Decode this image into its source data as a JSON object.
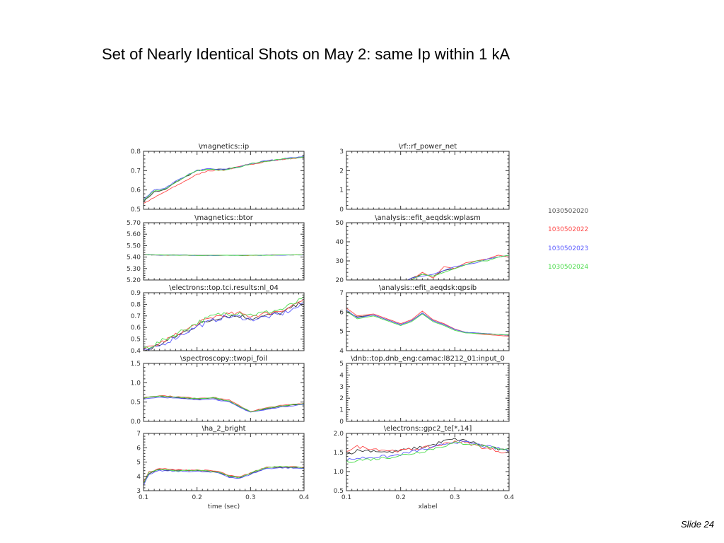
{
  "slide": {
    "title": "Set of Nearly Identical Shots on May 2:  same Ip within 1 kA",
    "slide_number": "Slide 24"
  },
  "legend": [
    {
      "label": "1030502020",
      "color": "#555555"
    },
    {
      "label": "1030502022",
      "color": "#ff4a4a"
    },
    {
      "label": "1030502023",
      "color": "#5a5aff"
    },
    {
      "label": "1030502024",
      "color": "#4ddc4d"
    }
  ],
  "series_colors": [
    "#333333",
    "#ff4a4a",
    "#5a5aff",
    "#4ddc4d"
  ],
  "chart_data": [
    {
      "type": "line",
      "title": "\\magnetics::ip",
      "xlim": [
        0.1,
        0.4
      ],
      "ylim": [
        0.5,
        0.8
      ],
      "yticks": [
        0.5,
        0.6,
        0.7,
        0.8
      ],
      "ytick_labels": [
        "0.5",
        "0.6",
        "0.7",
        "0.8"
      ],
      "x": [
        0.1,
        0.12,
        0.14,
        0.16,
        0.18,
        0.2,
        0.22,
        0.25,
        0.28,
        0.3,
        0.33,
        0.36,
        0.4
      ],
      "series": [
        {
          "values": [
            0.54,
            0.59,
            0.6,
            0.64,
            0.67,
            0.7,
            0.705,
            0.706,
            0.72,
            0.735,
            0.75,
            0.76,
            0.77
          ],
          "noise": 0.003
        },
        {
          "values": [
            0.53,
            0.56,
            0.59,
            0.62,
            0.65,
            0.68,
            0.7,
            0.703,
            0.72,
            0.733,
            0.748,
            0.758,
            0.77
          ],
          "noise": 0.003
        },
        {
          "values": [
            0.55,
            0.6,
            0.61,
            0.645,
            0.675,
            0.7,
            0.708,
            0.706,
            0.72,
            0.735,
            0.75,
            0.76,
            0.775
          ],
          "noise": 0.003
        },
        {
          "values": [
            0.545,
            0.595,
            0.605,
            0.64,
            0.672,
            0.698,
            0.706,
            0.705,
            0.72,
            0.734,
            0.749,
            0.759,
            0.772
          ],
          "noise": 0.003
        }
      ]
    },
    {
      "type": "line",
      "title": "\\rf::rf_power_net",
      "xlim": [
        0.1,
        0.4
      ],
      "ylim": [
        0,
        3
      ],
      "yticks": [
        0,
        1,
        2,
        3
      ],
      "ytick_labels": [
        "0",
        "1",
        "2",
        "3"
      ],
      "x": [
        0.1,
        0.4
      ],
      "series": [
        {
          "values": [
            0,
            0
          ],
          "noise": 0
        },
        {
          "values": [
            0,
            0
          ],
          "noise": 0
        },
        {
          "values": [
            0,
            0
          ],
          "noise": 0
        },
        {
          "values": [
            0,
            0
          ],
          "noise": 0
        }
      ]
    },
    {
      "type": "line",
      "title": "\\magnetics::btor",
      "xlim": [
        0.1,
        0.4
      ],
      "ylim": [
        5.2,
        5.7
      ],
      "yticks": [
        5.2,
        5.3,
        5.4,
        5.5,
        5.6,
        5.7
      ],
      "ytick_labels": [
        "5.20",
        "5.30",
        "5.40",
        "5.50",
        "5.60",
        "5.70"
      ],
      "x": [
        0.1,
        0.2,
        0.3,
        0.4
      ],
      "series": [
        {
          "values": [
            5.42,
            5.415,
            5.415,
            5.42
          ],
          "noise": 0.002
        },
        {
          "values": [
            5.42,
            5.415,
            5.415,
            5.42
          ],
          "noise": 0.002
        },
        {
          "values": [
            5.42,
            5.415,
            5.415,
            5.42
          ],
          "noise": 0.002
        },
        {
          "values": [
            5.42,
            5.415,
            5.415,
            5.42
          ],
          "noise": 0.002
        }
      ]
    },
    {
      "type": "line",
      "title": "\\analysis::efit_aeqdsk:wplasm",
      "xlim": [
        0.1,
        0.4
      ],
      "ylim": [
        20,
        50
      ],
      "yticks": [
        20,
        30,
        40,
        50
      ],
      "ytick_labels": [
        "20",
        "30",
        "40",
        "50"
      ],
      "x": [
        0.1,
        0.2,
        0.22,
        0.24,
        0.26,
        0.28,
        0.3,
        0.32,
        0.34,
        0.36,
        0.38,
        0.4
      ],
      "series": [
        {
          "values": [
            18,
            18,
            21,
            23,
            22,
            25,
            26,
            28,
            30,
            31,
            32,
            33
          ],
          "noise": 0
        },
        {
          "values": [
            18,
            18,
            20,
            24,
            21,
            27,
            26,
            29,
            30,
            31,
            33,
            32
          ],
          "noise": 0
        },
        {
          "values": [
            18,
            18,
            21,
            22,
            23,
            25,
            27,
            28,
            29,
            31,
            32,
            33
          ],
          "noise": 0
        },
        {
          "values": [
            18,
            18,
            20,
            23,
            22,
            24,
            26,
            28,
            30,
            30,
            32,
            33
          ],
          "noise": 0
        }
      ]
    },
    {
      "type": "line",
      "title": "\\electrons::top.tci.results:nl_04",
      "xlim": [
        0.1,
        0.4
      ],
      "ylim": [
        0.4,
        0.9
      ],
      "yticks": [
        0.4,
        0.5,
        0.6,
        0.7,
        0.8,
        0.9
      ],
      "ytick_labels": [
        "0.4",
        "0.5",
        "0.6",
        "0.7",
        "0.8",
        "0.9"
      ],
      "x": [
        0.1,
        0.12,
        0.15,
        0.18,
        0.2,
        0.23,
        0.25,
        0.28,
        0.3,
        0.33,
        0.36,
        0.4
      ],
      "series": [
        {
          "values": [
            0.4,
            0.43,
            0.5,
            0.57,
            0.62,
            0.67,
            0.7,
            0.7,
            0.68,
            0.7,
            0.73,
            0.82
          ],
          "noise": 0.02
        },
        {
          "values": [
            0.41,
            0.44,
            0.51,
            0.58,
            0.63,
            0.69,
            0.71,
            0.72,
            0.7,
            0.72,
            0.75,
            0.84
          ],
          "noise": 0.02
        },
        {
          "values": [
            0.39,
            0.42,
            0.49,
            0.56,
            0.61,
            0.66,
            0.69,
            0.69,
            0.67,
            0.69,
            0.72,
            0.8
          ],
          "noise": 0.02
        },
        {
          "values": [
            0.42,
            0.45,
            0.52,
            0.59,
            0.64,
            0.7,
            0.72,
            0.73,
            0.71,
            0.73,
            0.76,
            0.85
          ],
          "noise": 0.02
        }
      ]
    },
    {
      "type": "line",
      "title": "\\analysis::efit_aeqdsk:qpsib",
      "xlim": [
        0.1,
        0.4
      ],
      "ylim": [
        4,
        7
      ],
      "yticks": [
        4,
        5,
        6,
        7
      ],
      "ytick_labels": [
        "4",
        "5",
        "6",
        "7"
      ],
      "x": [
        0.1,
        0.12,
        0.15,
        0.18,
        0.2,
        0.22,
        0.24,
        0.26,
        0.28,
        0.3,
        0.32,
        0.35,
        0.4
      ],
      "series": [
        {
          "values": [
            6.0,
            5.75,
            5.85,
            5.55,
            5.35,
            5.55,
            5.95,
            5.55,
            5.35,
            5.1,
            4.95,
            4.9,
            4.8
          ],
          "noise": 0
        },
        {
          "values": [
            6.2,
            5.8,
            5.9,
            5.6,
            5.4,
            5.6,
            6.05,
            5.6,
            5.4,
            5.12,
            4.95,
            4.85,
            4.75
          ],
          "noise": 0
        },
        {
          "values": [
            6.1,
            5.7,
            5.85,
            5.55,
            5.35,
            5.55,
            5.95,
            5.55,
            5.35,
            5.1,
            4.95,
            4.9,
            4.8
          ],
          "noise": 0
        },
        {
          "values": [
            6.05,
            5.65,
            5.8,
            5.5,
            5.3,
            5.5,
            5.9,
            5.5,
            5.3,
            5.05,
            4.92,
            4.88,
            4.82
          ],
          "noise": 0
        }
      ]
    },
    {
      "type": "line",
      "title": "\\spectroscopy::twopi_foil",
      "xlim": [
        0.1,
        0.4
      ],
      "ylim": [
        0,
        1.5
      ],
      "yticks": [
        0,
        0.5,
        1,
        1.5
      ],
      "ytick_labels": [
        "0.0",
        "0.5",
        "1.0",
        "1.5"
      ],
      "x": [
        0.1,
        0.13,
        0.16,
        0.2,
        0.23,
        0.26,
        0.28,
        0.3,
        0.32,
        0.35,
        0.4
      ],
      "series": [
        {
          "values": [
            0.6,
            0.65,
            0.62,
            0.58,
            0.6,
            0.52,
            0.38,
            0.25,
            0.3,
            0.38,
            0.45
          ],
          "noise": 0.01
        },
        {
          "values": [
            0.62,
            0.67,
            0.64,
            0.6,
            0.62,
            0.55,
            0.4,
            0.26,
            0.32,
            0.4,
            0.47
          ],
          "noise": 0.01
        },
        {
          "values": [
            0.58,
            0.63,
            0.6,
            0.56,
            0.58,
            0.5,
            0.36,
            0.24,
            0.28,
            0.36,
            0.44
          ],
          "noise": 0.01
        },
        {
          "values": [
            0.61,
            0.66,
            0.63,
            0.59,
            0.61,
            0.53,
            0.39,
            0.25,
            0.31,
            0.39,
            0.46
          ],
          "noise": 0.01
        }
      ]
    },
    {
      "type": "line",
      "title": "\\dnb::top.dnb_eng:camac:l8212_01:input_0",
      "xlim": [
        0.1,
        0.4
      ],
      "ylim": [
        0,
        5
      ],
      "yticks": [
        0,
        1,
        2,
        3,
        4,
        5
      ],
      "ytick_labels": [
        "0",
        "1",
        "2",
        "3",
        "4",
        "5"
      ],
      "x": [
        0.1,
        0.4
      ],
      "series": [
        {
          "values": [
            0,
            0
          ],
          "noise": 0
        },
        {
          "values": [
            0,
            0
          ],
          "noise": 0
        },
        {
          "values": [
            0,
            0
          ],
          "noise": 0
        },
        {
          "values": [
            0,
            0
          ],
          "noise": 0
        }
      ]
    },
    {
      "type": "line",
      "title": "\\ha_2_bright",
      "xlim": [
        0.1,
        0.4
      ],
      "ylim": [
        3,
        7
      ],
      "yticks": [
        3,
        4,
        5,
        6,
        7
      ],
      "ytick_labels": [
        "3",
        "4",
        "5",
        "6",
        "7"
      ],
      "xticks": [
        0.1,
        0.2,
        0.3,
        0.4
      ],
      "xtick_labels": [
        "0.1",
        "0.2",
        "0.3",
        "0.4"
      ],
      "xlabel": "time (sec)",
      "x": [
        0.1,
        0.11,
        0.13,
        0.16,
        0.2,
        0.24,
        0.26,
        0.28,
        0.3,
        0.33,
        0.36,
        0.4
      ],
      "series": [
        {
          "values": [
            3.5,
            4.2,
            4.5,
            4.4,
            4.4,
            4.3,
            4.0,
            3.9,
            4.2,
            4.6,
            4.65,
            4.6
          ],
          "noise": 0.04
        },
        {
          "values": [
            3.6,
            4.3,
            4.55,
            4.45,
            4.45,
            4.35,
            4.05,
            3.95,
            4.25,
            4.65,
            4.7,
            4.65
          ],
          "noise": 0.04
        },
        {
          "values": [
            3.4,
            4.1,
            4.4,
            4.35,
            4.35,
            4.25,
            3.95,
            3.85,
            4.15,
            4.55,
            4.6,
            4.55
          ],
          "noise": 0.04
        },
        {
          "values": [
            3.55,
            4.25,
            4.5,
            4.4,
            4.42,
            4.3,
            4.02,
            3.92,
            4.22,
            4.62,
            4.68,
            4.62
          ],
          "noise": 0.04
        }
      ]
    },
    {
      "type": "line",
      "title": "\\electrons::gpc2_te[*,14]",
      "xlim": [
        0.1,
        0.4
      ],
      "ylim": [
        0.5,
        2.0
      ],
      "yticks": [
        0.5,
        1.0,
        1.5,
        2.0
      ],
      "ytick_labels": [
        "0.5",
        "1.0",
        "1.5",
        "2.0"
      ],
      "xticks": [
        0.1,
        0.2,
        0.3,
        0.4
      ],
      "xtick_labels": [
        "0.1",
        "0.2",
        "0.3",
        "0.4"
      ],
      "xlabel": "xlabel",
      "x": [
        0.1,
        0.12,
        0.15,
        0.18,
        0.2,
        0.23,
        0.26,
        0.28,
        0.3,
        0.33,
        0.36,
        0.4
      ],
      "series": [
        {
          "values": [
            1.45,
            1.55,
            1.55,
            1.5,
            1.55,
            1.62,
            1.7,
            1.8,
            1.85,
            1.78,
            1.65,
            1.52
          ],
          "noise": 0.04
        },
        {
          "values": [
            1.55,
            1.65,
            1.6,
            1.55,
            1.55,
            1.6,
            1.65,
            1.72,
            1.8,
            1.72,
            1.6,
            1.48
          ],
          "noise": 0.04
        },
        {
          "values": [
            1.3,
            1.35,
            1.38,
            1.4,
            1.45,
            1.55,
            1.62,
            1.72,
            1.78,
            1.75,
            1.65,
            1.55
          ],
          "noise": 0.04
        },
        {
          "values": [
            1.25,
            1.3,
            1.33,
            1.38,
            1.42,
            1.5,
            1.6,
            1.68,
            1.75,
            1.73,
            1.65,
            1.58
          ],
          "noise": 0.04
        }
      ]
    }
  ]
}
